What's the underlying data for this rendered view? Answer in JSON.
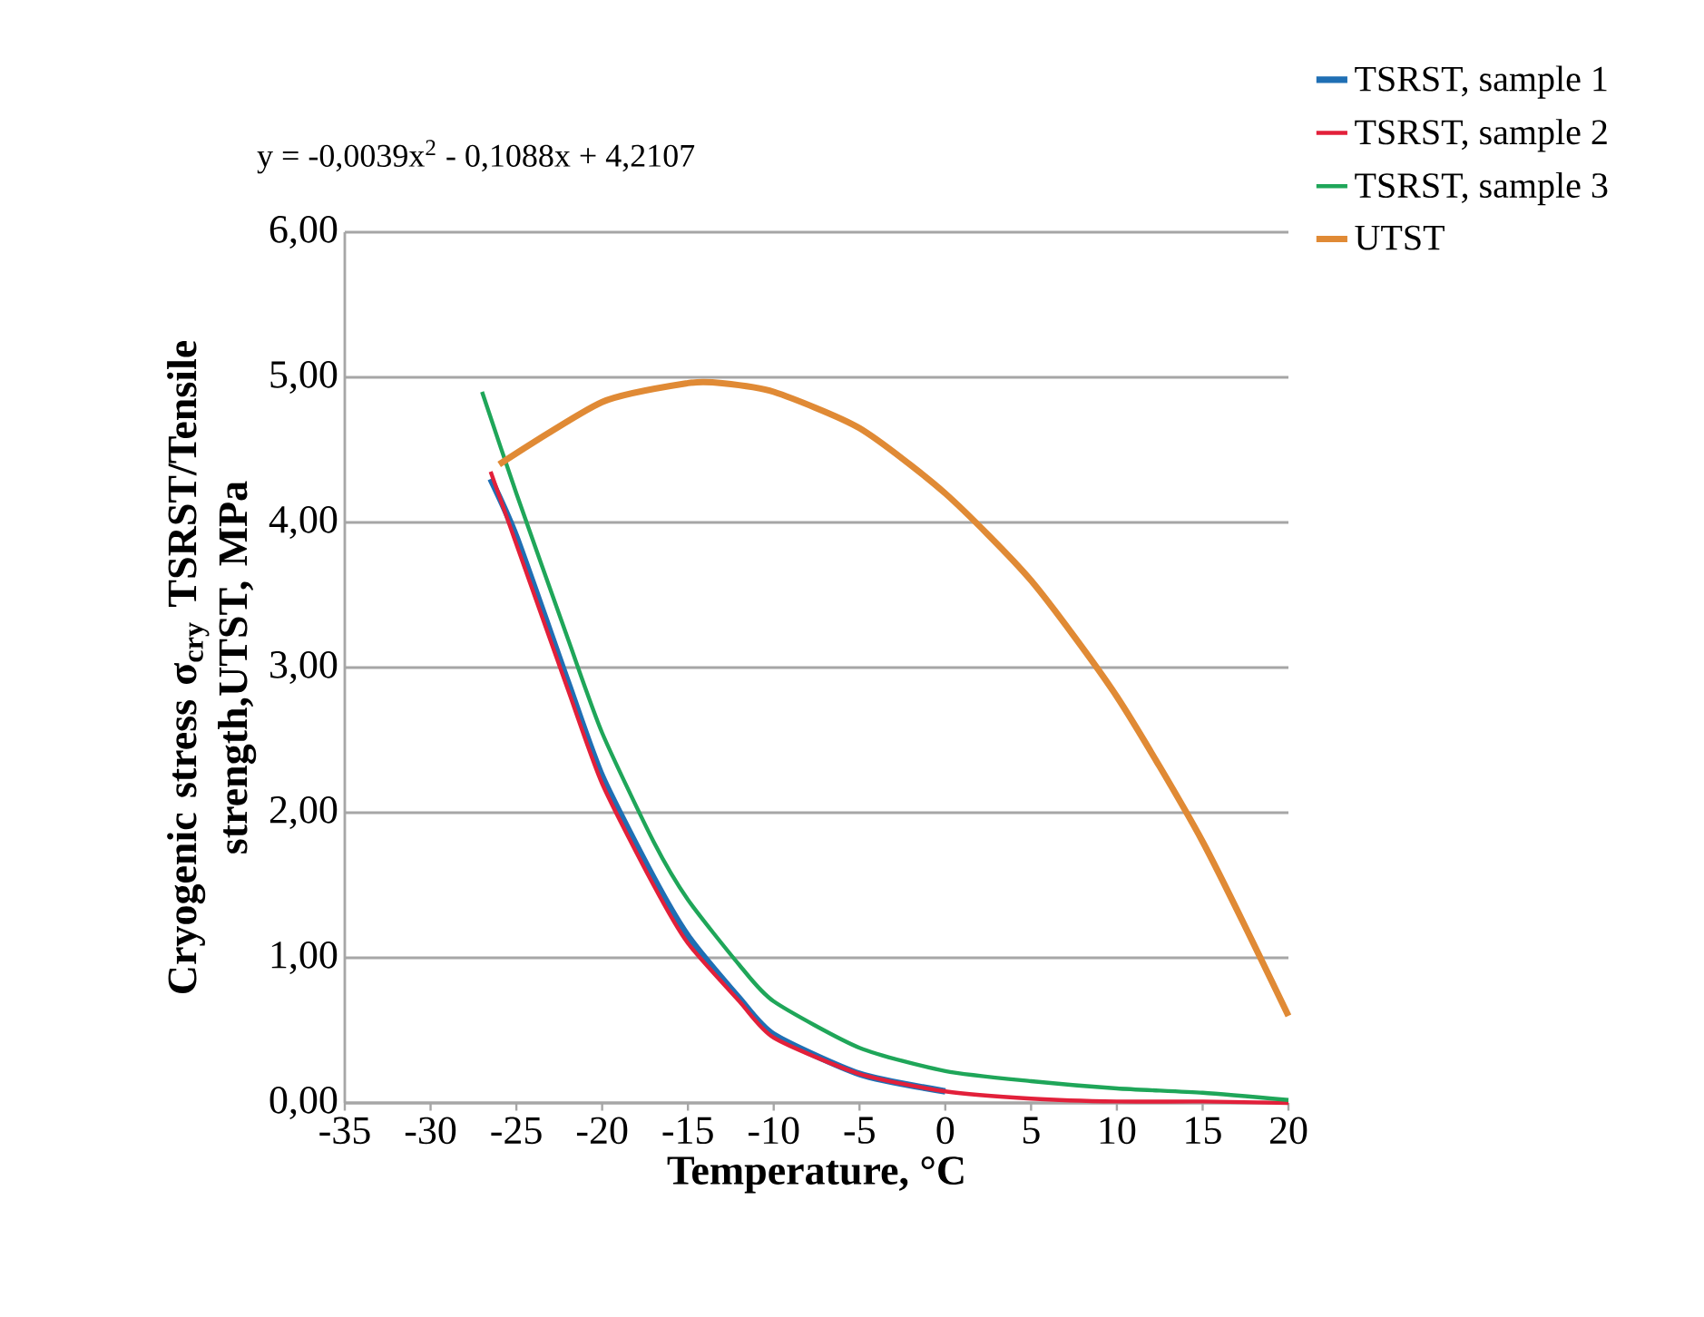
{
  "chart_data": {
    "type": "line",
    "xlabel": "Temperature, °C",
    "ylabel": "Cryogenic stress σ$_{cry}$ TSRST/Tensile strength,UTST, MPa",
    "annotations": [
      "y = -0,0039x$^{2}$ - 0,1088x + 4,2107"
    ],
    "xlim": [
      -35,
      20
    ],
    "xticks": [
      -35,
      -30,
      -25,
      -20,
      -15,
      -10,
      -5,
      0,
      5,
      10,
      15,
      20
    ],
    "ylim": [
      0,
      6
    ],
    "yticks": [
      {
        "value": 0,
        "label": "0,00"
      },
      {
        "value": 1,
        "label": "1,00"
      },
      {
        "value": 2,
        "label": "2,00"
      },
      {
        "value": 3,
        "label": "3,00"
      },
      {
        "value": 4,
        "label": "4,00"
      },
      {
        "value": 5,
        "label": "5,00"
      },
      {
        "value": 6,
        "label": "6,00"
      }
    ],
    "grid": "y",
    "legend": "top right",
    "line_style": "solid",
    "marker": "none",
    "series": [
      {
        "name": "TSRST, sample 1",
        "color": "#1f6fb4",
        "x": [
          -26.5,
          -25,
          -22,
          -20,
          -17,
          -15,
          -12,
          -10,
          -5,
          0
        ],
        "values": [
          4.3,
          3.9,
          2.9,
          2.25,
          1.55,
          1.15,
          0.72,
          0.47,
          0.2,
          0.08
        ]
      },
      {
        "name": "TSRST, sample 2",
        "color": "#e2203a",
        "x": [
          -26.5,
          -25,
          -22,
          -20,
          -17,
          -15,
          -12,
          -10,
          -5,
          0,
          5,
          10,
          15,
          20
        ],
        "values": [
          4.35,
          3.85,
          2.85,
          2.2,
          1.5,
          1.1,
          0.7,
          0.45,
          0.2,
          0.08,
          0.03,
          0.01,
          0.01,
          0
        ]
      },
      {
        "name": "TSRST, sample 3",
        "color": "#1fa659",
        "x": [
          -27,
          -25,
          -22,
          -20,
          -17,
          -15,
          -12,
          -10,
          -5,
          0,
          5,
          10,
          15,
          20
        ],
        "values": [
          4.9,
          4.2,
          3.2,
          2.55,
          1.8,
          1.4,
          0.95,
          0.7,
          0.38,
          0.22,
          0.15,
          0.1,
          0.07,
          0.02
        ]
      },
      {
        "name": "UTST",
        "color": "#e08a35",
        "x": [
          -26,
          -20,
          -15,
          -13,
          -10,
          -5,
          0,
          5,
          10,
          15,
          20
        ],
        "values": [
          4.4,
          4.83,
          4.96,
          4.96,
          4.9,
          4.65,
          4.2,
          3.6,
          2.8,
          1.8,
          0.6
        ]
      }
    ]
  }
}
